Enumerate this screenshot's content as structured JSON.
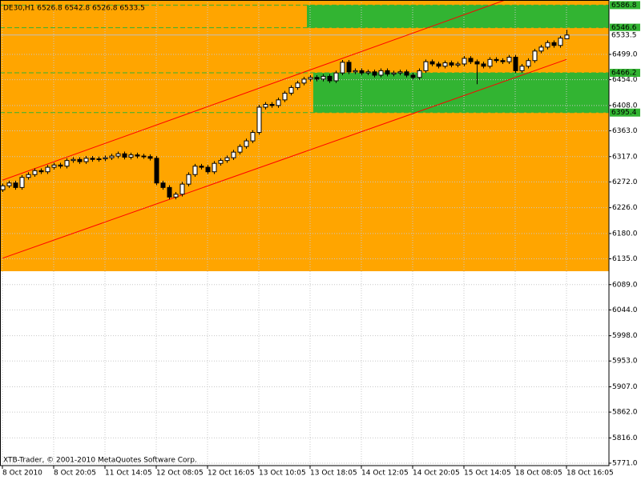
{
  "chart_data": {
    "type": "candlestick",
    "title": "DE30,H1  6526.8 6542.8 6526.8 6533.5",
    "footer": "XTB-Trader, © 2001-2010 MetaQuotes Software Corp.",
    "categories": [
      "8 Oct 2010",
      null,
      null,
      null,
      null,
      null,
      null,
      null,
      "8 Oct 20:05",
      null,
      null,
      null,
      null,
      null,
      null,
      null,
      "11 Oct 14:05",
      null,
      null,
      null,
      null,
      null,
      null,
      null,
      "12 Oct 08:05",
      null,
      null,
      null,
      null,
      null,
      null,
      null,
      "12 Oct 16:05",
      null,
      null,
      null,
      null,
      null,
      null,
      null,
      "13 Oct 10:05",
      null,
      null,
      null,
      null,
      null,
      null,
      null,
      "13 Oct 18:05",
      null,
      null,
      null,
      null,
      null,
      null,
      null,
      "14 Oct 12:05",
      null,
      null,
      null,
      null,
      null,
      null,
      null,
      "14 Oct 20:05",
      null,
      null,
      null,
      null,
      null,
      null,
      null,
      "15 Oct 14:05",
      null,
      null,
      null,
      null,
      null,
      null,
      null,
      "18 Oct 08:05",
      null,
      null,
      null,
      null,
      null,
      null,
      null,
      "18 Oct 16:05"
    ],
    "open": [
      6258,
      6265,
      6270,
      6262,
      6280,
      6285,
      6292,
      6290,
      6298,
      6302,
      6300,
      6310,
      6312,
      6308,
      6314,
      6312,
      6313,
      6315,
      6318,
      6322,
      6316,
      6320,
      6318,
      6317,
      6314,
      6270,
      6262,
      6245,
      6250,
      6268,
      6285,
      6300,
      6298,
      6290,
      6305,
      6310,
      6315,
      6325,
      6335,
      6345,
      6360,
      6405,
      6410,
      6408,
      6418,
      6430,
      6440,
      6448,
      6455,
      6458,
      6455,
      6460,
      6452,
      6466,
      6485,
      6468,
      6470,
      6466,
      6468,
      6462,
      6470,
      6464,
      6466,
      6468,
      6462,
      6458,
      6470,
      6486,
      6482,
      6478,
      6484,
      6480,
      6482,
      6492,
      6486,
      6482,
      6478,
      6490,
      6488,
      6486,
      6494,
      6470,
      6478,
      6488,
      6505,
      6512,
      6520,
      6515,
      6526.8
    ],
    "high": [
      6269,
      6274,
      6274,
      6284,
      6289,
      6296,
      6296,
      6302,
      6306,
      6306,
      6314,
      6316,
      6316,
      6318,
      6318,
      6317,
      6319,
      6322,
      6326,
      6326,
      6324,
      6324,
      6322,
      6321,
      6318,
      6274,
      6266,
      6254,
      6272,
      6289,
      6304,
      6304,
      6302,
      6309,
      6314,
      6319,
      6329,
      6339,
      6349,
      6364,
      6409,
      6414,
      6414,
      6422,
      6434,
      6444,
      6452,
      6459,
      6462,
      6462,
      6464,
      6464,
      6470,
      6489,
      6489,
      6474,
      6474,
      6472,
      6472,
      6474,
      6474,
      6470,
      6472,
      6472,
      6466,
      6474,
      6490,
      6490,
      6486,
      6488,
      6488,
      6486,
      6496,
      6496,
      6490,
      6486,
      6494,
      6494,
      6492,
      6498,
      6498,
      6482,
      6492,
      6509,
      6516,
      6524,
      6524,
      6532,
      6542.8
    ],
    "low": [
      6254,
      6261,
      6258,
      6258,
      6276,
      6281,
      6286,
      6286,
      6294,
      6296,
      6296,
      6306,
      6304,
      6304,
      6308,
      6308,
      6309,
      6311,
      6314,
      6312,
      6312,
      6314,
      6313,
      6310,
      6266,
      6258,
      6241,
      6241,
      6246,
      6264,
      6281,
      6294,
      6286,
      6286,
      6301,
      6306,
      6311,
      6321,
      6331,
      6341,
      6356,
      6401,
      6404,
      6404,
      6414,
      6426,
      6436,
      6444,
      6451,
      6451,
      6451,
      6448,
      6448,
      6462,
      6464,
      6464,
      6462,
      6462,
      6458,
      6458,
      6460,
      6460,
      6462,
      6458,
      6454,
      6454,
      6466,
      6478,
      6474,
      6474,
      6476,
      6476,
      6478,
      6482,
      6446,
      6474,
      6474,
      6484,
      6482,
      6482,
      6466,
      6466,
      6474,
      6484,
      6501,
      6508,
      6511,
      6511,
      6526.8
    ],
    "close": [
      6265,
      6270,
      6262,
      6280,
      6285,
      6292,
      6290,
      6298,
      6302,
      6300,
      6310,
      6312,
      6308,
      6314,
      6312,
      6313,
      6315,
      6318,
      6322,
      6316,
      6320,
      6318,
      6317,
      6314,
      6270,
      6262,
      6245,
      6250,
      6268,
      6285,
      6300,
      6298,
      6290,
      6305,
      6310,
      6315,
      6325,
      6335,
      6345,
      6360,
      6405,
      6410,
      6408,
      6418,
      6430,
      6440,
      6448,
      6455,
      6458,
      6455,
      6460,
      6452,
      6466,
      6485,
      6468,
      6470,
      6466,
      6468,
      6462,
      6470,
      6464,
      6466,
      6468,
      6462,
      6458,
      6470,
      6486,
      6482,
      6478,
      6484,
      6480,
      6482,
      6492,
      6486,
      6482,
      6478,
      6490,
      6488,
      6486,
      6494,
      6470,
      6478,
      6488,
      6505,
      6512,
      6520,
      6515,
      6528,
      6533.5
    ],
    "up_color": "#ffffff",
    "down_color": "#000000",
    "wick_color": "#000000",
    "ylim": [
      5766.7,
      6595.9
    ],
    "yticks": [
      {
        "value": 6499,
        "label": "6499.0"
      },
      {
        "value": 6454,
        "label": "6454.0"
      },
      {
        "value": 6408,
        "label": "6408.0"
      },
      {
        "value": 6363,
        "label": "6363.0"
      },
      {
        "value": 6317,
        "label": "6317.0"
      },
      {
        "value": 6272,
        "label": "6272.0"
      },
      {
        "value": 6226,
        "label": "6226.0"
      },
      {
        "value": 6180,
        "label": "6180.0"
      },
      {
        "value": 6135,
        "label": "6135.0"
      },
      {
        "value": 6089,
        "label": "6089.0"
      },
      {
        "value": 6044,
        "label": "6044.0"
      },
      {
        "value": 5998,
        "label": "5998.0"
      },
      {
        "value": 5953,
        "label": "5953.0"
      },
      {
        "value": 5907,
        "label": "5907.0"
      },
      {
        "value": 5862,
        "label": "5862.0"
      },
      {
        "value": 5816,
        "label": "5816.0"
      },
      {
        "value": 5771,
        "label": "5771.0"
      }
    ],
    "grid": true,
    "rectangles": [
      {
        "color": "#ffa500",
        "start": 0,
        "price_top": 6595.9,
        "price_bottom": 6112.9
      },
      {
        "color": "#32b432",
        "start": 48,
        "price_top": 6586.8,
        "price_bottom": 6546.6
      },
      {
        "color": "#32b432",
        "start": 49,
        "price_top": 6466.2,
        "price_bottom": 6395.4
      }
    ],
    "levels": [
      {
        "value": 6586.8,
        "color": "#32b432"
      },
      {
        "value": 6546.6,
        "color": "#32b432"
      },
      {
        "value": 6533.5,
        "color": "#c0c0c0"
      },
      {
        "value": 6466.2,
        "color": "#32b432"
      },
      {
        "value": 6395.4,
        "color": "#32b432"
      }
    ],
    "trendlines": [
      {
        "color": "#ff0000",
        "start": 0,
        "p0": 6275,
        "end": 88,
        "p1": 6635
      },
      {
        "color": "#ff0000",
        "start": 0,
        "p0": 6136,
        "end": 88,
        "p1": 6490
      }
    ]
  }
}
